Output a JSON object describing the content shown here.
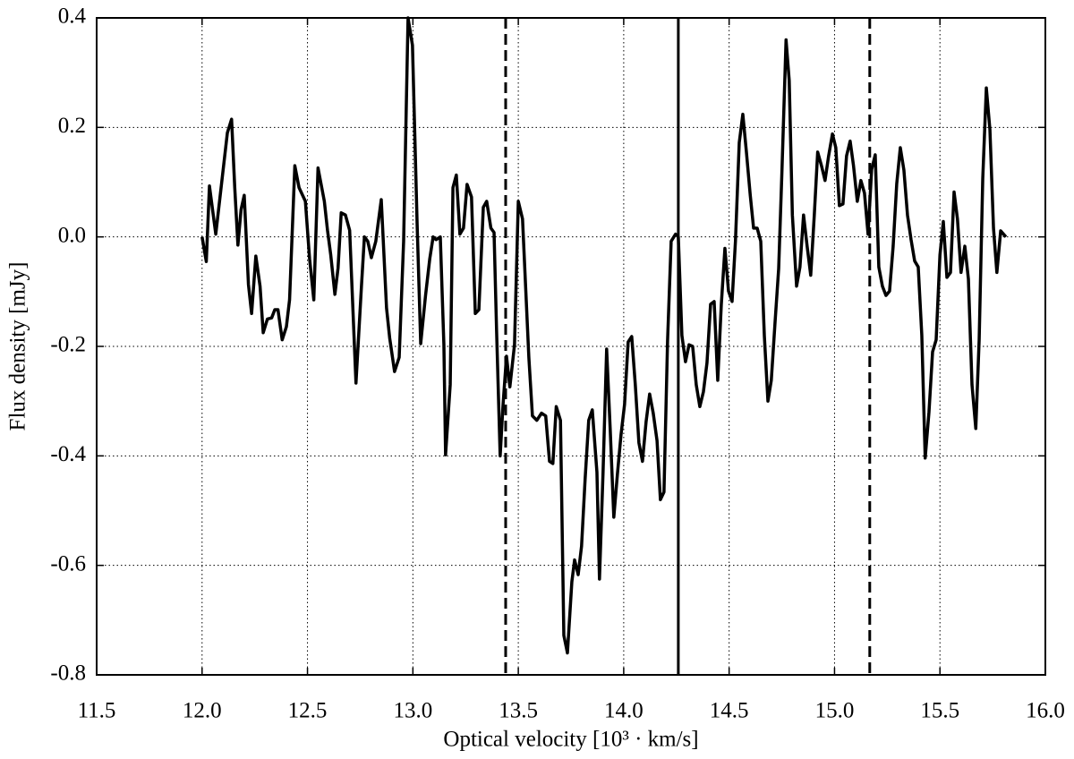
{
  "chart_data": {
    "type": "line",
    "xlabel": "Optical velocity [10³ · km/s]",
    "ylabel": "Flux density [mJy]",
    "xlim": [
      11.5,
      16.0
    ],
    "ylim": [
      -0.8,
      0.4
    ],
    "xticks": [
      11.5,
      {
        "value": 12,
        "label": "12.0"
      },
      12.5,
      {
        "value": 13,
        "label": "13.0"
      },
      13.5,
      {
        "value": 14,
        "label": "14.0"
      },
      14.5,
      {
        "value": 15,
        "label": "15.0"
      },
      15.5,
      {
        "value": 16,
        "label": "16.0"
      }
    ],
    "yticks": [
      -0.8,
      -0.6,
      -0.4,
      -0.2,
      {
        "value": 0,
        "label": "0.0"
      },
      0.2,
      0.4
    ],
    "grid": true,
    "vlines": [
      {
        "x": 13.44,
        "style": "dashed"
      },
      {
        "x": 14.259,
        "style": "solid"
      },
      {
        "x": 15.167,
        "style": "dashed"
      }
    ],
    "series": [
      {
        "color": "#000000",
        "x": [
          12.0,
          12.02,
          12.035,
          12.065,
          12.095,
          12.12,
          12.14,
          12.155,
          12.17,
          12.185,
          12.2,
          12.22,
          12.235,
          12.255,
          12.275,
          12.29,
          12.31,
          12.33,
          12.345,
          12.36,
          12.38,
          12.4,
          12.415,
          12.44,
          12.46,
          12.49,
          12.51,
          12.53,
          12.55,
          12.58,
          12.595,
          12.61,
          12.63,
          12.645,
          12.66,
          12.68,
          12.7,
          12.73,
          12.756,
          12.77,
          12.786,
          12.803,
          12.824,
          12.85,
          12.875,
          12.89,
          12.913,
          12.935,
          12.956,
          12.977,
          12.998,
          13.02,
          13.037,
          13.06,
          13.08,
          13.096,
          13.11,
          13.13,
          13.147,
          13.155,
          13.177,
          13.19,
          13.206,
          13.223,
          13.24,
          13.257,
          13.278,
          13.296,
          13.313,
          13.334,
          13.35,
          13.37,
          13.385,
          13.397,
          13.414,
          13.427,
          13.444,
          13.46,
          13.482,
          13.5,
          13.52,
          13.55,
          13.567,
          13.588,
          13.61,
          13.63,
          13.648,
          13.664,
          13.68,
          13.7,
          13.716,
          13.733,
          13.754,
          13.767,
          13.784,
          13.8,
          13.817,
          13.834,
          13.851,
          13.873,
          13.885,
          13.902,
          13.919,
          13.936,
          13.953,
          13.97,
          13.987,
          14.004,
          14.021,
          14.038,
          14.055,
          14.072,
          14.089,
          14.106,
          14.123,
          14.14,
          14.158,
          14.174,
          14.191,
          14.208,
          14.225,
          14.246,
          14.259,
          14.276,
          14.293,
          14.31,
          14.327,
          14.344,
          14.361,
          14.378,
          14.395,
          14.412,
          14.429,
          14.446,
          14.463,
          14.48,
          14.497,
          14.514,
          14.53,
          14.548,
          14.565,
          14.582,
          14.6,
          14.616,
          14.633,
          14.65,
          14.667,
          14.684,
          14.7,
          14.718,
          14.735,
          14.75,
          14.77,
          14.785,
          14.8,
          14.82,
          14.836,
          14.853,
          14.87,
          14.887,
          14.904,
          14.92,
          14.938,
          14.955,
          14.972,
          14.99,
          15.006,
          15.023,
          15.04,
          15.057,
          15.074,
          15.09,
          15.108,
          15.125,
          15.142,
          15.159,
          15.176,
          15.193,
          15.21,
          15.227,
          15.244,
          15.261,
          15.278,
          15.295,
          15.312,
          15.329,
          15.346,
          15.363,
          15.38,
          15.397,
          15.414,
          15.43,
          15.448,
          15.465,
          15.482,
          15.5,
          15.516,
          15.533,
          15.55,
          15.567,
          15.583,
          15.6,
          15.618,
          15.635,
          15.652,
          15.67,
          15.686,
          15.703,
          15.72,
          15.737,
          15.754,
          15.77,
          15.788,
          15.813
        ],
        "values": [
          0.0,
          -0.045,
          0.093,
          0.005,
          0.106,
          0.19,
          0.215,
          0.09,
          -0.015,
          0.05,
          0.076,
          -0.087,
          -0.14,
          -0.035,
          -0.09,
          -0.175,
          -0.15,
          -0.148,
          -0.133,
          -0.133,
          -0.188,
          -0.164,
          -0.115,
          0.13,
          0.09,
          0.065,
          -0.04,
          -0.115,
          0.126,
          0.065,
          0.012,
          -0.032,
          -0.105,
          -0.057,
          0.044,
          0.04,
          0.012,
          -0.267,
          -0.09,
          0.0,
          -0.008,
          -0.038,
          -0.008,
          0.068,
          -0.13,
          -0.185,
          -0.246,
          -0.22,
          -0.008,
          0.4,
          0.35,
          0.025,
          -0.195,
          -0.107,
          -0.04,
          0.0,
          -0.005,
          0.0,
          -0.197,
          -0.398,
          -0.27,
          0.09,
          0.113,
          0.005,
          0.016,
          0.096,
          0.073,
          -0.14,
          -0.133,
          0.054,
          0.065,
          0.016,
          0.008,
          -0.172,
          -0.4,
          -0.31,
          -0.218,
          -0.274,
          -0.197,
          0.065,
          0.033,
          -0.22,
          -0.327,
          -0.335,
          -0.322,
          -0.327,
          -0.41,
          -0.414,
          -0.31,
          -0.335,
          -0.728,
          -0.76,
          -0.63,
          -0.59,
          -0.617,
          -0.565,
          -0.442,
          -0.335,
          -0.316,
          -0.43,
          -0.625,
          -0.43,
          -0.205,
          -0.352,
          -0.512,
          -0.434,
          -0.362,
          -0.306,
          -0.192,
          -0.182,
          -0.27,
          -0.376,
          -0.41,
          -0.338,
          -0.287,
          -0.322,
          -0.372,
          -0.48,
          -0.466,
          -0.19,
          -0.008,
          0.005,
          0.0,
          -0.18,
          -0.228,
          -0.197,
          -0.2,
          -0.27,
          -0.31,
          -0.283,
          -0.23,
          -0.123,
          -0.118,
          -0.262,
          -0.123,
          -0.021,
          -0.099,
          -0.118,
          -0.008,
          0.172,
          0.224,
          0.155,
          0.077,
          0.016,
          0.016,
          -0.008,
          -0.18,
          -0.3,
          -0.262,
          -0.155,
          -0.058,
          0.114,
          0.36,
          0.286,
          0.04,
          -0.09,
          -0.055,
          0.04,
          -0.017,
          -0.07,
          0.04,
          0.155,
          0.13,
          0.103,
          0.148,
          0.188,
          0.163,
          0.057,
          0.06,
          0.148,
          0.175,
          0.13,
          0.065,
          0.103,
          0.08,
          0.005,
          0.123,
          0.15,
          -0.055,
          -0.09,
          -0.107,
          -0.099,
          -0.017,
          0.097,
          0.163,
          0.122,
          0.04,
          -0.005,
          -0.044,
          -0.055,
          -0.18,
          -0.404,
          -0.32,
          -0.21,
          -0.188,
          -0.033,
          0.028,
          -0.074,
          -0.065,
          0.082,
          0.033,
          -0.065,
          -0.017,
          -0.077,
          -0.27,
          -0.35,
          -0.188,
          0.106,
          0.272,
          0.196,
          0.016,
          -0.065,
          0.011,
          0.0
        ]
      }
    ]
  }
}
